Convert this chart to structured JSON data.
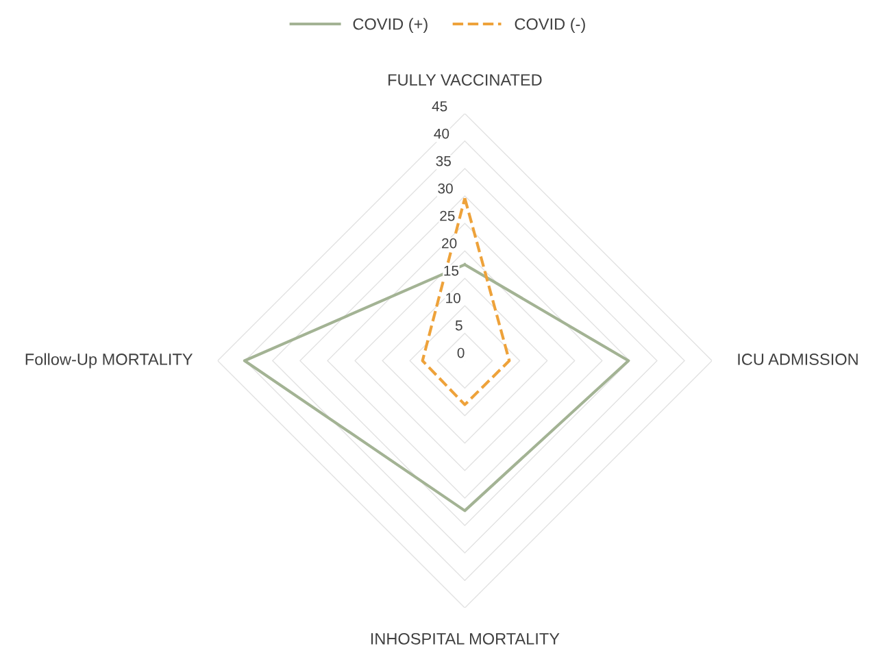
{
  "chart_data": {
    "type": "radar",
    "categories": [
      "FULLY VACCINATED",
      "ICU ADMISSION",
      "INHOSPITAL MORTALITY",
      "Follow-Up MORTALITY"
    ],
    "series": [
      {
        "name": "COVID (+)",
        "color": "#a3b394",
        "values": [
          17.5,
          29.8,
          27.3,
          40.1
        ],
        "line_style": "solid"
      },
      {
        "name": "COVID (-)",
        "color": "#eea23a",
        "values": [
          29.6,
          8.1,
          8.0,
          7.7
        ],
        "line_style": "dashed"
      }
    ],
    "ylim": [
      0,
      45
    ],
    "yticks": [
      0,
      5,
      10,
      15,
      20,
      25,
      30,
      35,
      40,
      45
    ],
    "grid": true,
    "legend": "top",
    "marker": "none"
  }
}
